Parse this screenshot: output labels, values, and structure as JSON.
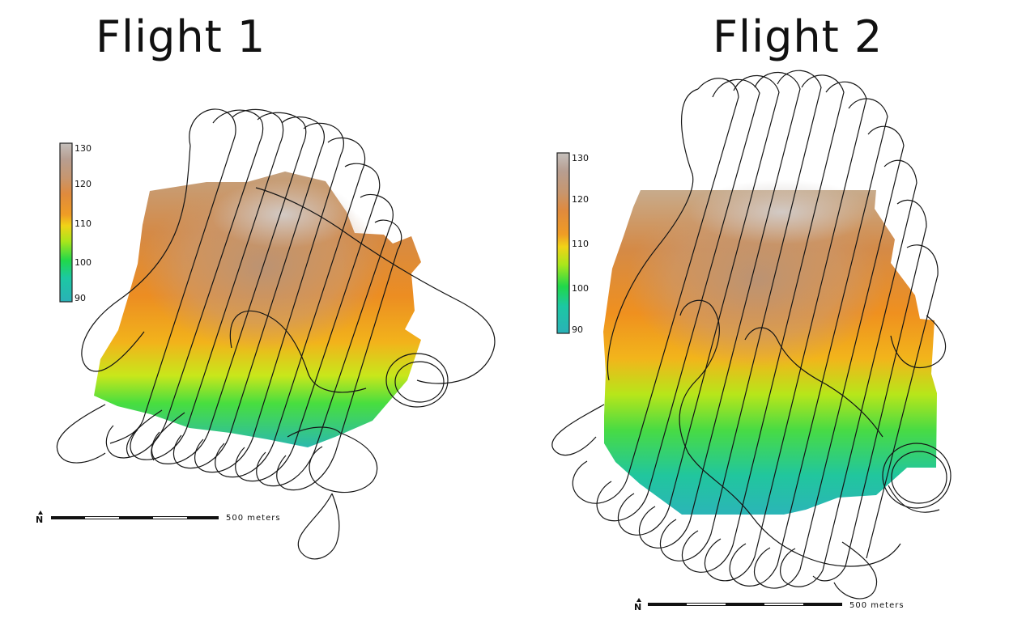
{
  "maps": [
    {
      "title": "Flight 1",
      "legend": {
        "ticks": [
          "130",
          "120",
          "110",
          "100",
          "90"
        ],
        "colors": [
          "#2ab1b7",
          "#1cc8a3",
          "#20d84a",
          "#a9e61b",
          "#f1d317",
          "#ef9c25",
          "#df8a3d",
          "#c7966e",
          "#b79e91",
          "#c5c0bc"
        ]
      },
      "scale_bar": {
        "north_label": "N",
        "text": "500 meters"
      }
    },
    {
      "title": "Flight 2",
      "legend": {
        "ticks": [
          "130",
          "120",
          "110",
          "100",
          "90"
        ],
        "colors": [
          "#2ab1b7",
          "#1cc8a3",
          "#20d84a",
          "#a9e61b",
          "#f1d317",
          "#ef9c25",
          "#df8a3d",
          "#c7966e",
          "#b79e91",
          "#c5c0bc"
        ]
      },
      "scale_bar": {
        "north_label": "N",
        "text": "500 meters"
      }
    }
  ]
}
